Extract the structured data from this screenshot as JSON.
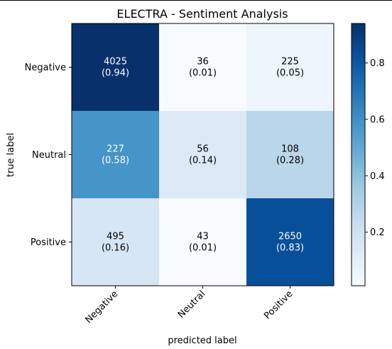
{
  "chart_data": {
    "type": "heatmap",
    "title": "ELECTRA - Sentiment Analysis",
    "xlabel": "predicted label",
    "ylabel": "true label",
    "x_categories": [
      "Negative",
      "Neutral",
      "Positive"
    ],
    "y_categories": [
      "Negative",
      "Neutral",
      "Positive"
    ],
    "counts": [
      [
        4025,
        36,
        225
      ],
      [
        227,
        56,
        108
      ],
      [
        495,
        43,
        2650
      ]
    ],
    "normalized": [
      [
        0.94,
        0.01,
        0.05
      ],
      [
        0.58,
        0.14,
        0.28
      ],
      [
        0.16,
        0.01,
        0.83
      ]
    ],
    "cell_labels": [
      [
        "4025\n(0.94)",
        "36\n(0.01)",
        "225\n(0.05)"
      ],
      [
        "227\n(0.58)",
        "56\n(0.14)",
        "108\n(0.28)"
      ],
      [
        "495\n(0.16)",
        "43\n(0.01)",
        "2650\n(0.83)"
      ]
    ],
    "colormap": "Blues",
    "colorbar": {
      "range": [
        0.01,
        0.94
      ],
      "ticks": [
        0.2,
        0.4,
        0.6,
        0.8
      ],
      "tick_labels": [
        "0.2",
        "0.4",
        "0.6",
        "0.8"
      ]
    }
  }
}
